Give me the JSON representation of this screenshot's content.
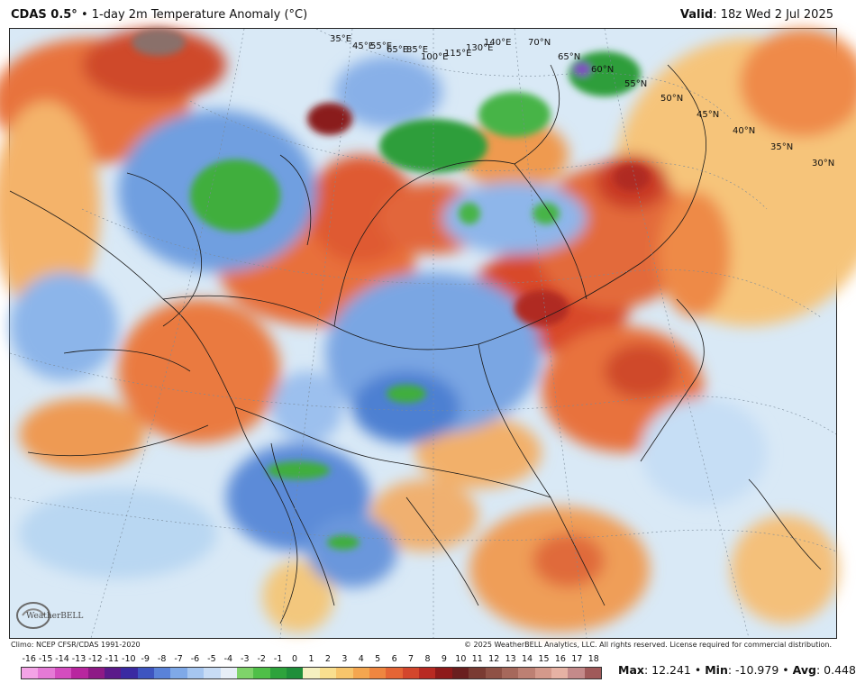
{
  "header": {
    "product": "CDAS 0.5°",
    "separator": "•",
    "description": "1-day 2m Temperature Anomaly (°C)",
    "valid_label": "Valid",
    "valid_value": ": 18z Wed 2 Jul 2025"
  },
  "map_labels": {
    "longitudes": [
      "35°E",
      "45°E",
      "55°E",
      "65°E",
      "85°E",
      "100°E",
      "115°E",
      "130°E",
      "140°E"
    ],
    "latitudes": [
      "70°N",
      "65°N",
      "60°N",
      "55°N",
      "50°N",
      "45°N",
      "40°N",
      "35°N",
      "30°N"
    ]
  },
  "footer": {
    "climo": "Climo: NCEP CFSR/CDAS 1991-2020",
    "copyright": "© 2025 WeatherBELL Analytics, LLC. All rights reserved. License required for commercial distribution."
  },
  "logo": {
    "text": "WeatherBELL"
  },
  "colorbar": {
    "ticks": [
      "-16",
      "-15",
      "-14",
      "-13",
      "-12",
      "-11",
      "-10",
      "-9",
      "-8",
      "-7",
      "-6",
      "-5",
      "-4",
      "-3",
      "-2",
      "-1",
      "0",
      "1",
      "2",
      "3",
      "4",
      "5",
      "6",
      "7",
      "8",
      "9",
      "10",
      "11",
      "12",
      "13",
      "14",
      "15",
      "16",
      "17",
      "18"
    ],
    "colors": [
      "#f4a3e6",
      "#e57ad6",
      "#d44cbf",
      "#b8269f",
      "#8e1a86",
      "#5b1a8a",
      "#3a2aa2",
      "#3e55c0",
      "#5a82d8",
      "#7fa9e8",
      "#a6c6f0",
      "#c8dcf5",
      "#e7eef7",
      "#7fd36a",
      "#4fbf48",
      "#2ea33c",
      "#1f8f3a",
      "#f5f0c0",
      "#f9df8f",
      "#f7c56b",
      "#f4a64f",
      "#ef8640",
      "#e56535",
      "#d3462c",
      "#b82a22",
      "#8e1a1a",
      "#6a1f1f",
      "#7a3b32",
      "#8f5145",
      "#a6685b",
      "#bd8073",
      "#d4998b",
      "#e6b2a4",
      "#c48a8a",
      "#a05a5a"
    ]
  },
  "stats": {
    "max_label": "Max",
    "max_value": ": 12.241",
    "min_label": "Min",
    "min_value": ": -10.979",
    "avg_label": "Avg",
    "avg_value": ": 0.448",
    "sep": "•"
  }
}
